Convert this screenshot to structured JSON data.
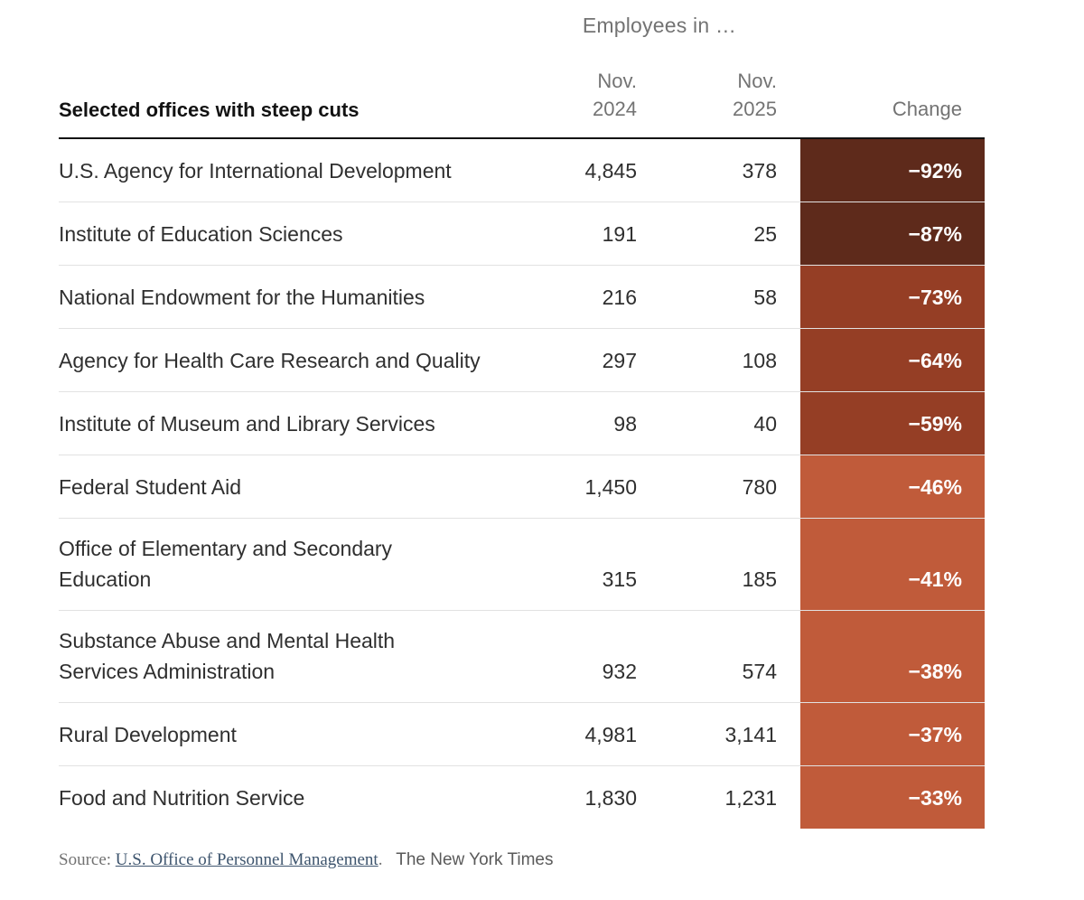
{
  "chart_data": {
    "type": "table",
    "title": "Employees in …",
    "columns": [
      "Selected offices with steep cuts",
      "Nov. 2024",
      "Nov. 2025",
      "Change"
    ],
    "rows": [
      {
        "label_lines": [
          "U.S. Agency for International Development"
        ],
        "nov2024": "4,845",
        "nov2025": "378",
        "change": "−92%",
        "tier": "dark"
      },
      {
        "label_lines": [
          "Institute of Education Sciences"
        ],
        "nov2024": "191",
        "nov2025": "25",
        "change": "−87%",
        "tier": "dark"
      },
      {
        "label_lines": [
          "National Endowment for the Humanities"
        ],
        "nov2024": "216",
        "nov2025": "58",
        "change": "−73%",
        "tier": "mid"
      },
      {
        "label_lines": [
          "Agency for Health Care Research and Quality"
        ],
        "nov2024": "297",
        "nov2025": "108",
        "change": "−64%",
        "tier": "mid"
      },
      {
        "label_lines": [
          "Institute of Museum and Library Services"
        ],
        "nov2024": "98",
        "nov2025": "40",
        "change": "−59%",
        "tier": "mid"
      },
      {
        "label_lines": [
          "Federal Student Aid"
        ],
        "nov2024": "1,450",
        "nov2025": "780",
        "change": "−46%",
        "tier": "light"
      },
      {
        "label_lines": [
          "Office of Elementary and Secondary",
          "Education"
        ],
        "nov2024": "315",
        "nov2025": "185",
        "change": "−41%",
        "tier": "light"
      },
      {
        "label_lines": [
          "Substance Abuse and Mental Health",
          "Services Administration"
        ],
        "nov2024": "932",
        "nov2025": "574",
        "change": "−38%",
        "tier": "light"
      },
      {
        "label_lines": [
          "Rural Development"
        ],
        "nov2024": "4,981",
        "nov2025": "3,141",
        "change": "−37%",
        "tier": "light"
      },
      {
        "label_lines": [
          "Food and Nutrition Service"
        ],
        "nov2024": "1,830",
        "nov2025": "1,231",
        "change": "−33%",
        "tier": "light"
      }
    ]
  },
  "table": {
    "super_header": "Employees in …",
    "headers": {
      "offices": "Selected offices with steep cuts",
      "nov2024_line1": "Nov.",
      "nov2024_line2": "2024",
      "nov2025_line1": "Nov.",
      "nov2025_line2": "2025",
      "change": "Change"
    }
  },
  "footer": {
    "source_prefix": "Source:",
    "source_link": "U.S. Office of Personnel Management",
    "source_suffix": ".",
    "credit": "The New York Times"
  },
  "colors": {
    "dark": "#5e2a1b",
    "mid": "#953e25",
    "light": "#c05b3a",
    "header_rule": "#121212",
    "separator": "#e2e2e2",
    "header_text": "#737373",
    "body_text": "#2f2f2f",
    "change_text": "#ffffff",
    "link": "#3e556e",
    "source_text": "#727272"
  }
}
